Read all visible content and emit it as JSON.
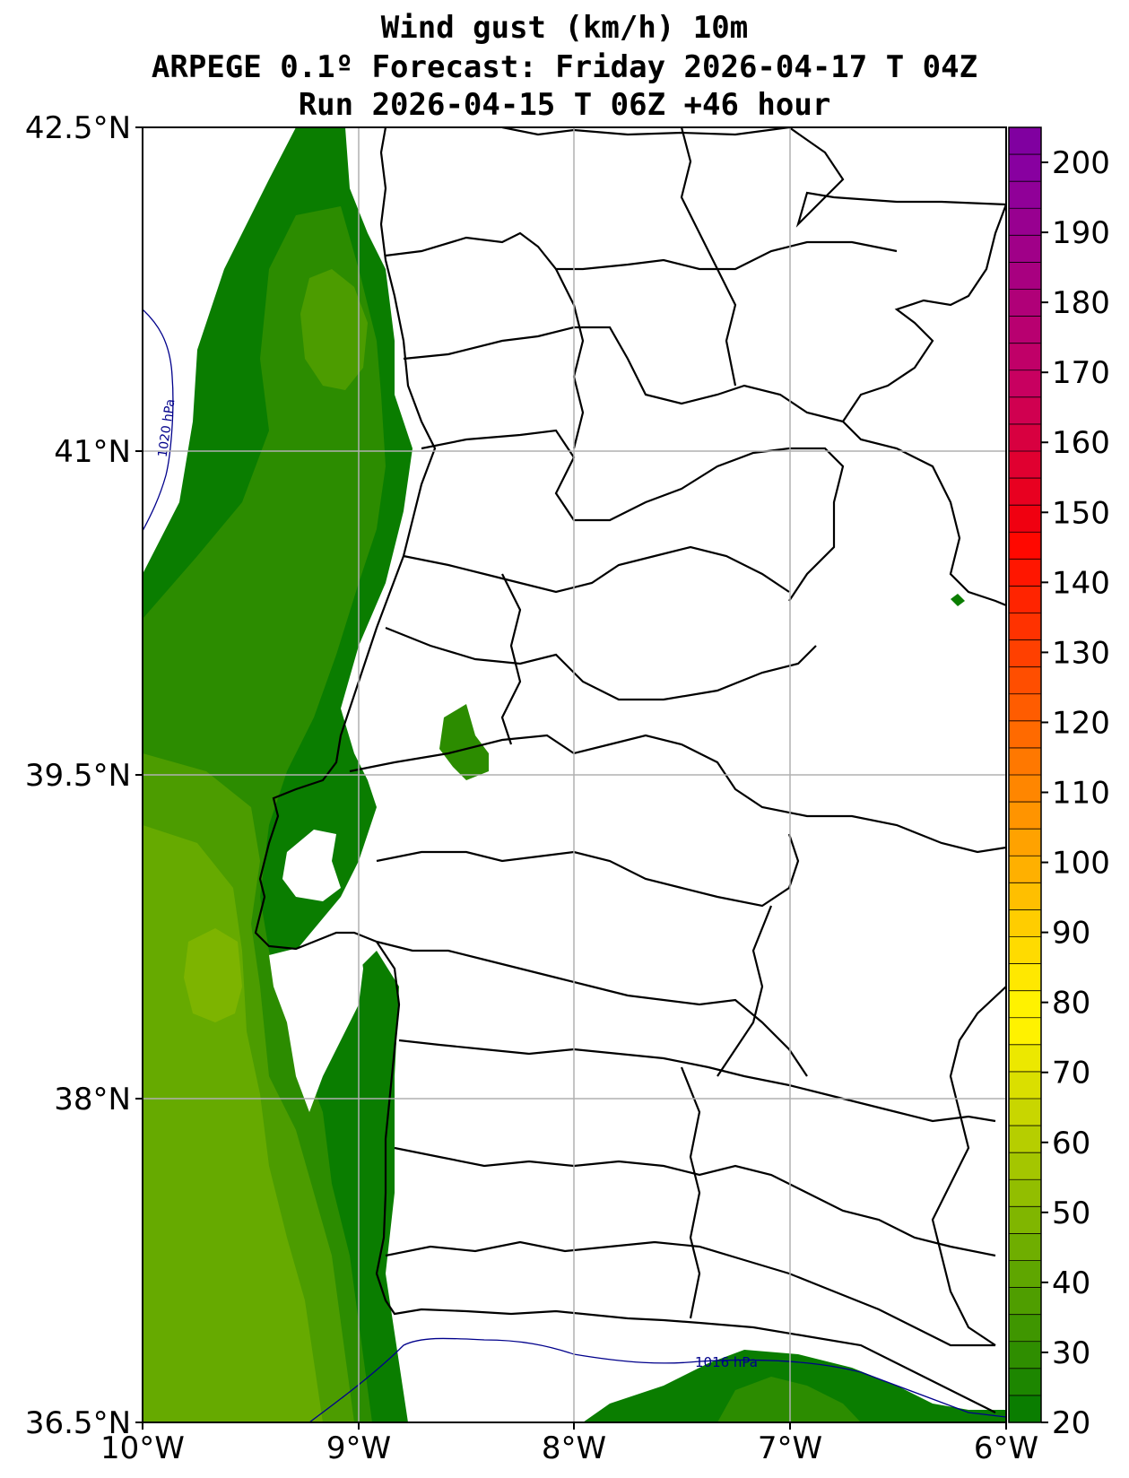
{
  "title": {
    "line1": "Wind gust (km/h) 10m",
    "line2": "ARPEGE 0.1º Forecast: Friday 2026-04-17 T 04Z",
    "line3": "Run 2026-04-15 T 06Z +46 hour"
  },
  "axes": {
    "lat_ticks": [
      "42.5°N",
      "41°N",
      "39.5°N",
      "38°N",
      "36.5°N"
    ],
    "lon_ticks": [
      "10°W",
      "9°W",
      "8°W",
      "7°W",
      "6°W"
    ],
    "lat_range": [
      36.5,
      42.5
    ],
    "lon_range": [
      -10,
      -6
    ],
    "grid": true
  },
  "isobars": [
    {
      "label": "1020 hPa",
      "color": "#00008b"
    },
    {
      "label": "1016 hPa",
      "color": "#00008b"
    }
  ],
  "colorbar": {
    "ticks": [
      "20",
      "30",
      "40",
      "50",
      "60",
      "70",
      "80",
      "90",
      "100",
      "110",
      "120",
      "130",
      "140",
      "150",
      "160",
      "170",
      "180",
      "190",
      "200"
    ],
    "min": 20,
    "max": 205,
    "colors": [
      "#0a7d00",
      "#1d8600",
      "#2f8e00",
      "#3f9600",
      "#4f9e00",
      "#5fa600",
      "#6fae00",
      "#80b600",
      "#92be00",
      "#a4c600",
      "#b6ce00",
      "#c8d600",
      "#dadf00",
      "#ece800",
      "#fff200",
      "#fff200",
      "#ffe800",
      "#ffdb00",
      "#ffcd00",
      "#ffbf00",
      "#ffb000",
      "#ffa200",
      "#ff9400",
      "#ff8600",
      "#ff7800",
      "#ff6a00",
      "#ff5c00",
      "#ff4e00",
      "#ff4000",
      "#ff3200",
      "#ff2400",
      "#ff1600",
      "#ff0800",
      "#f00010",
      "#e80020",
      "#e00030",
      "#d80040",
      "#d00050",
      "#c80060",
      "#c00068",
      "#b80070",
      "#b00078",
      "#a80080",
      "#a00088",
      "#980090",
      "#900098",
      "#8800a0",
      "#8000a0"
    ]
  },
  "colors": {
    "gust_20_30": "#0a7d00",
    "gust_30_35": "#2c8c00",
    "gust_35_45": "#4c9c00",
    "gust_45_50": "#66aa00",
    "gust_50_55": "#7db400"
  }
}
